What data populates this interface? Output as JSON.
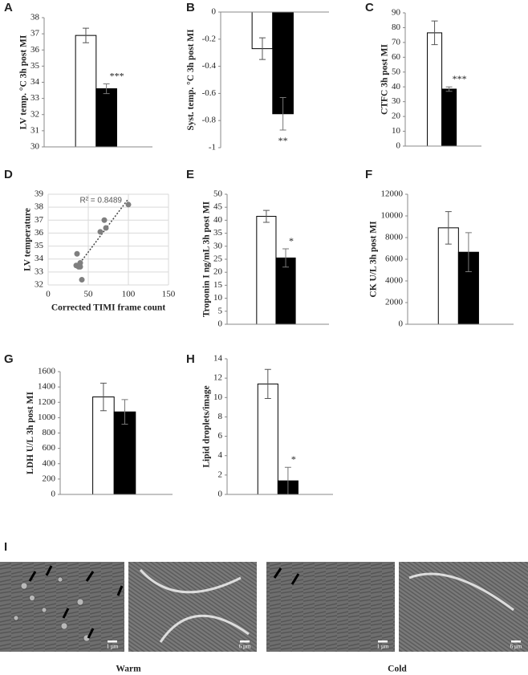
{
  "chart_data": [
    {
      "type": "bar",
      "label": "A",
      "y_label": "LV temp. °C 3h post MI",
      "categories": [
        null,
        null
      ],
      "values": [
        36.9,
        33.6
      ],
      "errors": [
        0.45,
        0.3
      ],
      "colors": [
        "#ffffff",
        "#000000"
      ],
      "ylim": [
        30,
        38
      ],
      "yticks": [
        30,
        31,
        32,
        33,
        34,
        35,
        36,
        37,
        38
      ],
      "annotation": "***"
    },
    {
      "type": "bar",
      "label": "B",
      "y_label": "Syst. temp. °C 3h post MI",
      "categories": [
        null,
        null
      ],
      "values": [
        -0.27,
        -0.75
      ],
      "errors": [
        0.08,
        0.12
      ],
      "colors": [
        "#ffffff",
        "#000000"
      ],
      "ylim": [
        -1,
        0
      ],
      "yticks": [
        -1,
        -0.8,
        -0.6,
        -0.4,
        -0.2,
        0
      ],
      "annotation": "**"
    },
    {
      "type": "bar",
      "label": "C",
      "y_label": "CTFC 3h post MI",
      "categories": [
        null,
        null
      ],
      "values": [
        76.5,
        38.5
      ],
      "errors": [
        8,
        1.5
      ],
      "colors": [
        "#ffffff",
        "#000000"
      ],
      "ylim": [
        0,
        90
      ],
      "yticks": [
        0,
        10,
        20,
        30,
        40,
        50,
        60,
        70,
        80,
        90
      ],
      "annotation": "***"
    },
    {
      "type": "scatter",
      "label": "D",
      "x_label": "Corrected TIMI frame count",
      "y_label": "LV temperature",
      "x": [
        35,
        36,
        38,
        40,
        40,
        42,
        65,
        70,
        72,
        100
      ],
      "y": [
        33.5,
        34.4,
        33.4,
        33.7,
        33.4,
        32.4,
        36.1,
        37,
        36.4,
        38.2
      ],
      "color": "#7f7f7f",
      "xlim": [
        0,
        150
      ],
      "xticks": [
        0,
        50,
        100,
        150
      ],
      "ylim": [
        32,
        39
      ],
      "yticks": [
        32,
        33,
        34,
        35,
        36,
        37,
        38,
        39
      ],
      "grid": true,
      "trendline": true,
      "annotation": "R² = 0.8489"
    },
    {
      "type": "bar",
      "label": "E",
      "y_label": "Troponin I ng/mL 3h post MI",
      "categories": [
        null,
        null
      ],
      "values": [
        41.5,
        25.5
      ],
      "errors": [
        2.3,
        3.5
      ],
      "colors": [
        "#ffffff",
        "#000000"
      ],
      "ylim": [
        0,
        50
      ],
      "yticks": [
        0,
        5,
        10,
        15,
        20,
        25,
        30,
        35,
        40,
        45,
        50
      ],
      "annotation": "*"
    },
    {
      "type": "bar",
      "label": "F",
      "y_label": "CK U/L 3h post MI",
      "categories": [
        null,
        null
      ],
      "values": [
        8900,
        6650
      ],
      "errors": [
        1500,
        1800
      ],
      "colors": [
        "#ffffff",
        "#000000"
      ],
      "ylim": [
        0,
        12000
      ],
      "yticks": [
        0,
        2000,
        4000,
        6000,
        8000,
        10000,
        12000
      ]
    },
    {
      "type": "bar",
      "label": "G",
      "y_label": "LDH U/L 3h post MI",
      "categories": [
        null,
        null
      ],
      "values": [
        1270,
        1075
      ],
      "errors": [
        180,
        160
      ],
      "colors": [
        "#ffffff",
        "#000000"
      ],
      "ylim": [
        0,
        1600
      ],
      "yticks": [
        0,
        200,
        400,
        600,
        800,
        1000,
        1200,
        1400,
        1600
      ]
    },
    {
      "type": "bar",
      "label": "H",
      "y_label": "Lipid droplets/image",
      "categories": [
        null,
        null
      ],
      "values": [
        11.4,
        1.4
      ],
      "errors": [
        1.5,
        1.4
      ],
      "colors": [
        "#ffffff",
        "#000000"
      ],
      "ylim": [
        0,
        14
      ],
      "yticks": [
        0,
        2,
        4,
        6,
        8,
        10,
        12,
        14
      ],
      "annotation": "*"
    }
  ],
  "panel_I": {
    "label": "I",
    "conditions": [
      "Warm",
      "Cold"
    ],
    "scale_bars": [
      "1 µm",
      "6 µm",
      "1 µm",
      "6 µm"
    ]
  }
}
